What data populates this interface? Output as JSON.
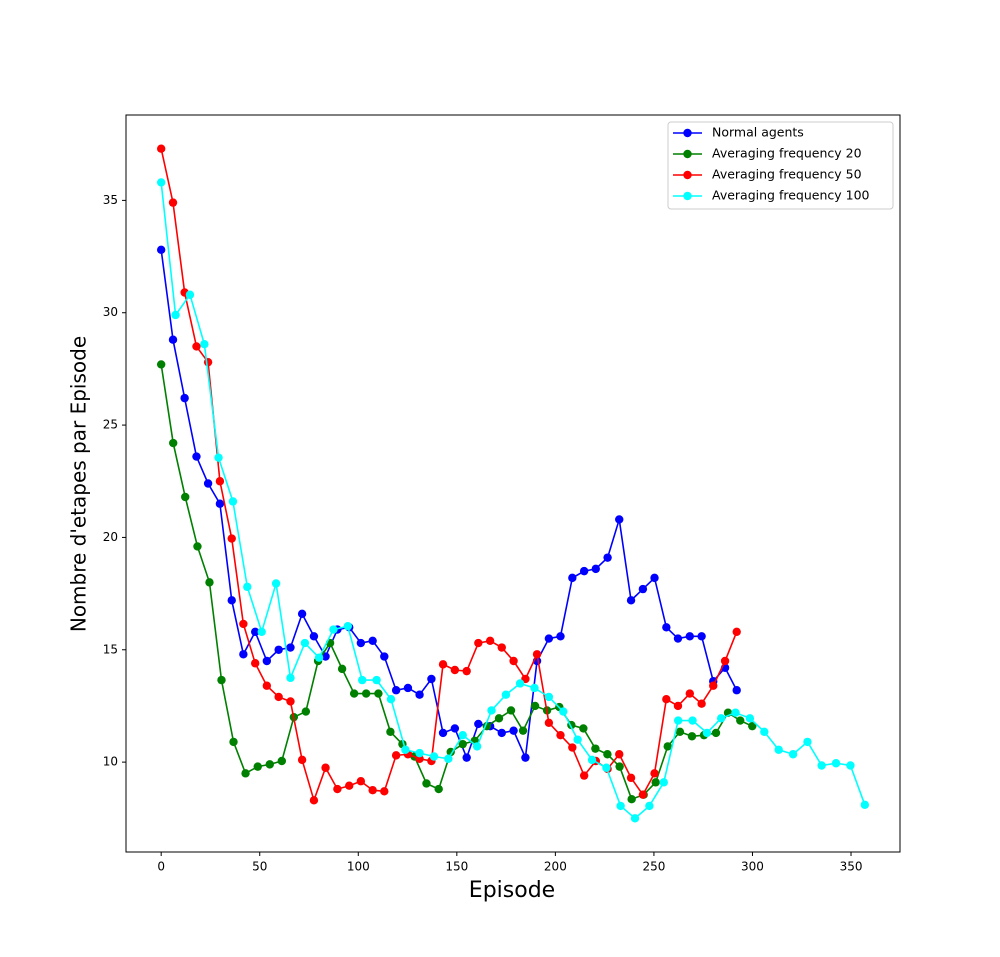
{
  "chart_data": {
    "type": "line",
    "xlabel": "Episode",
    "ylabel": "Nombre d'etapes par Episode",
    "xlim": [
      -17.85,
      374.85
    ],
    "ylim": [
      6.0,
      38.8
    ],
    "xticks": [
      0,
      50,
      100,
      150,
      200,
      250,
      300,
      350
    ],
    "yticks": [
      10,
      15,
      20,
      25,
      30,
      35
    ],
    "grid": false,
    "legend": "upper right",
    "marker": "o",
    "series": [
      {
        "name": "Normal agents",
        "color": "#0000ff",
        "x": [
          0,
          6,
          11.9,
          17.9,
          23.8,
          29.8,
          35.8,
          41.7,
          47.7,
          53.6,
          59.6,
          65.6,
          71.5,
          77.5,
          83.4,
          89.4,
          95.4,
          101.3,
          107.3,
          113.2,
          119.2,
          125.2,
          131.1,
          137.1,
          143,
          149,
          155,
          160.9,
          166.9,
          172.8,
          178.8,
          184.8,
          190.7,
          196.7,
          202.6,
          208.6,
          214.6,
          220.5,
          226.5,
          232.4,
          238.4,
          244.4,
          250.3,
          256.3,
          262.2,
          268.2,
          274.2,
          280.1,
          286.1,
          292
        ],
        "values": [
          32.8,
          28.8,
          26.2,
          23.6,
          22.4,
          21.5,
          17.2,
          14.8,
          15.8,
          14.5,
          15.0,
          15.1,
          16.6,
          15.6,
          14.7,
          15.9,
          16.0,
          15.3,
          15.4,
          14.7,
          13.2,
          13.3,
          13.0,
          13.7,
          11.3,
          11.5,
          10.2,
          11.7,
          11.6,
          11.3,
          11.4,
          10.2,
          14.5,
          15.5,
          15.6,
          18.2,
          18.5,
          18.6,
          19.1,
          20.8,
          17.2,
          17.7,
          18.2,
          16.0,
          15.5,
          15.6,
          15.6,
          13.6,
          14.2,
          13.2
        ]
      },
      {
        "name": "Averaging frequency 20",
        "color": "#008000",
        "x": [
          0,
          6.1,
          12.2,
          18.4,
          24.5,
          30.6,
          36.7,
          42.8,
          49,
          55.1,
          61.2,
          67.3,
          73.4,
          79.6,
          85.7,
          91.8,
          97.9,
          104,
          110.2,
          116.3,
          122.4,
          128.5,
          134.6,
          140.8,
          146.9,
          153,
          159.1,
          165.2,
          171.4,
          177.5,
          183.6,
          189.7,
          195.8,
          202,
          208.1,
          214.2,
          220.3,
          226.4,
          232.6,
          238.7,
          244.8,
          250.9,
          257,
          263.2,
          269.3,
          275.4,
          281.5,
          287.6,
          293.8,
          299.9
        ],
        "values": [
          27.7,
          24.2,
          21.8,
          19.6,
          18.0,
          13.65,
          10.9,
          9.5,
          9.8,
          9.9,
          10.05,
          12.0,
          12.25,
          14.5,
          15.3,
          14.15,
          13.05,
          13.05,
          13.05,
          11.35,
          10.8,
          10.25,
          9.05,
          8.8,
          10.45,
          10.8,
          10.95,
          11.6,
          11.95,
          12.3,
          11.4,
          12.5,
          12.3,
          12.45,
          11.65,
          11.5,
          10.6,
          10.35,
          9.8,
          8.35,
          8.55,
          9.1,
          10.7,
          11.35,
          11.15,
          11.2,
          11.3,
          12.2,
          11.85,
          11.6
        ]
      },
      {
        "name": "Averaging frequency 50",
        "color": "#ff0000",
        "x": [
          0,
          6,
          11.9,
          17.9,
          23.8,
          29.8,
          35.8,
          41.7,
          47.7,
          53.6,
          59.6,
          65.6,
          71.5,
          77.5,
          83.4,
          89.4,
          95.4,
          101.3,
          107.3,
          113.2,
          119.2,
          125.2,
          131.1,
          137.1,
          143,
          149,
          155,
          160.9,
          166.9,
          172.8,
          178.8,
          184.8,
          190.7,
          196.7,
          202.6,
          208.6,
          214.6,
          220.5,
          226.5,
          232.4,
          238.4,
          244.4,
          250.3,
          256.3,
          262.2,
          268.2,
          274.2,
          280.1,
          286.1,
          292
        ],
        "values": [
          37.3,
          34.9,
          30.9,
          28.5,
          27.8,
          22.5,
          19.95,
          16.15,
          14.4,
          13.4,
          12.9,
          12.7,
          10.1,
          8.3,
          9.75,
          8.8,
          8.95,
          9.15,
          8.75,
          8.7,
          10.3,
          10.35,
          10.15,
          10.05,
          14.35,
          14.1,
          14.05,
          15.3,
          15.4,
          15.1,
          14.5,
          13.7,
          14.8,
          11.75,
          11.2,
          10.65,
          9.4,
          10.05,
          9.7,
          10.35,
          9.3,
          8.55,
          9.5,
          12.8,
          12.5,
          13.05,
          12.6,
          13.4,
          14.5,
          15.8
        ]
      },
      {
        "name": "Averaging frequency 100",
        "color": "#00ffff",
        "x": [
          0,
          7.3,
          14.6,
          21.9,
          29.1,
          36.4,
          43.7,
          51,
          58.3,
          65.6,
          72.9,
          80.1,
          87.4,
          94.7,
          102,
          109.3,
          116.6,
          123.9,
          131.1,
          138.4,
          145.7,
          153,
          160.3,
          167.6,
          174.9,
          182.1,
          189.4,
          196.7,
          204,
          211.3,
          218.6,
          225.9,
          233.1,
          240.4,
          247.7,
          255,
          262.3,
          269.6,
          276.9,
          284.1,
          291.4,
          298.7,
          306,
          313.3,
          320.6,
          327.9,
          335.1,
          342.4,
          349.7,
          357
        ],
        "values": [
          35.8,
          29.9,
          30.8,
          28.6,
          23.55,
          21.6,
          17.8,
          15.8,
          17.95,
          13.75,
          15.3,
          14.65,
          15.9,
          16.05,
          13.65,
          13.65,
          12.8,
          10.55,
          10.4,
          10.25,
          10.15,
          11.2,
          10.7,
          12.3,
          13.0,
          13.5,
          13.3,
          12.9,
          12.25,
          11.0,
          10.1,
          9.75,
          8.05,
          7.5,
          8.05,
          9.1,
          11.85,
          11.85,
          11.3,
          11.95,
          12.2,
          11.95,
          11.35,
          10.55,
          10.35,
          10.9,
          9.85,
          9.95,
          9.85,
          8.1
        ]
      }
    ]
  }
}
